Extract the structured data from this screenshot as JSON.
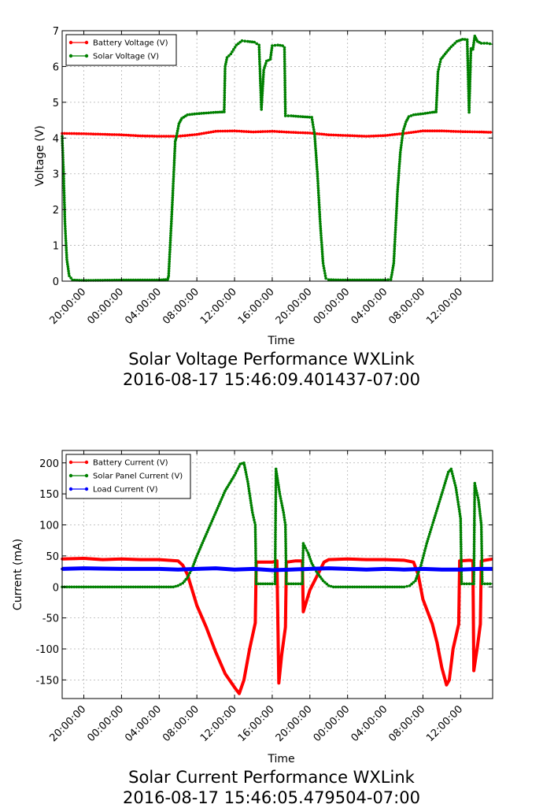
{
  "chart_data": [
    {
      "type": "line",
      "title": "Solar Voltage Performance WXLink",
      "subtitle": "2016-08-17 15:46:09.401437-07:00",
      "xlabel": "Time",
      "ylabel": "Voltage (V)",
      "ylim": [
        0,
        7
      ],
      "yticks": [
        0,
        1,
        2,
        3,
        4,
        5,
        6,
        7
      ],
      "xticks_hours": [
        20,
        24,
        28,
        32,
        36,
        40,
        44,
        48,
        52,
        56,
        60
      ],
      "xtick_labels": [
        "20:00:00",
        "00:00:00",
        "04:00:00",
        "08:00:00",
        "12:00:00",
        "16:00:00",
        "20:00:00",
        "00:00:00",
        "04:00:00",
        "08:00:00",
        "12:00:00"
      ],
      "xlim_hours": [
        17.7,
        63.4
      ],
      "grid": true,
      "legend_position": "top-left",
      "colors": {
        "battery": "#ff0000",
        "solar": "#008000"
      },
      "series": [
        {
          "name": "Battery Voltage (V)",
          "color": "#ff0000",
          "points": [
            [
              17.7,
              4.13
            ],
            [
              20,
              4.12
            ],
            [
              24,
              4.09
            ],
            [
              26,
              4.06
            ],
            [
              28,
              4.05
            ],
            [
              30,
              4.05
            ],
            [
              32,
              4.1
            ],
            [
              34,
              4.19
            ],
            [
              36,
              4.2
            ],
            [
              38,
              4.17
            ],
            [
              40,
              4.19
            ],
            [
              42,
              4.16
            ],
            [
              44,
              4.14
            ],
            [
              46,
              4.09
            ],
            [
              48,
              4.07
            ],
            [
              50,
              4.05
            ],
            [
              52,
              4.07
            ],
            [
              54,
              4.13
            ],
            [
              56,
              4.2
            ],
            [
              58,
              4.2
            ],
            [
              60,
              4.18
            ],
            [
              62,
              4.17
            ],
            [
              63.4,
              4.16
            ]
          ]
        },
        {
          "name": "Solar Voltage (V)",
          "color": "#008000",
          "points": [
            [
              17.7,
              4.05
            ],
            [
              17.85,
              3.0
            ],
            [
              18.0,
              1.6
            ],
            [
              18.2,
              0.6
            ],
            [
              18.45,
              0.15
            ],
            [
              18.8,
              0.03
            ],
            [
              20,
              0.02
            ],
            [
              24,
              0.03
            ],
            [
              28,
              0.03
            ],
            [
              28.9,
              0.05
            ],
            [
              29.0,
              0.15
            ],
            [
              29.4,
              2.2
            ],
            [
              29.7,
              3.9
            ],
            [
              29.8,
              4.0
            ],
            [
              30.1,
              4.4
            ],
            [
              30.4,
              4.55
            ],
            [
              31,
              4.65
            ],
            [
              32,
              4.68
            ],
            [
              33,
              4.7
            ],
            [
              34,
              4.72
            ],
            [
              34.9,
              4.73
            ],
            [
              35.0,
              6.0
            ],
            [
              35.2,
              6.25
            ],
            [
              35.6,
              6.35
            ],
            [
              36.2,
              6.6
            ],
            [
              36.8,
              6.72
            ],
            [
              37.4,
              6.7
            ],
            [
              38.1,
              6.68
            ],
            [
              38.6,
              6.6
            ],
            [
              38.85,
              4.8
            ],
            [
              39.1,
              5.9
            ],
            [
              39.4,
              6.15
            ],
            [
              39.8,
              6.2
            ],
            [
              40.0,
              6.58
            ],
            [
              40.6,
              6.6
            ],
            [
              41.1,
              6.58
            ],
            [
              41.3,
              6.53
            ],
            [
              41.4,
              4.62
            ],
            [
              42,
              4.62
            ],
            [
              43,
              4.6
            ],
            [
              44.2,
              4.58
            ],
            [
              44.5,
              4.1
            ],
            [
              44.8,
              3.0
            ],
            [
              45.1,
              1.6
            ],
            [
              45.4,
              0.5
            ],
            [
              45.7,
              0.08
            ],
            [
              46,
              0.04
            ],
            [
              48,
              0.03
            ],
            [
              52,
              0.03
            ],
            [
              52.6,
              0.05
            ],
            [
              52.9,
              0.5
            ],
            [
              53.3,
              2.5
            ],
            [
              53.6,
              3.6
            ],
            [
              53.9,
              4.2
            ],
            [
              54.2,
              4.45
            ],
            [
              54.5,
              4.6
            ],
            [
              55,
              4.65
            ],
            [
              56,
              4.68
            ],
            [
              57,
              4.72
            ],
            [
              57.4,
              4.73
            ],
            [
              57.6,
              5.85
            ],
            [
              57.9,
              6.2
            ],
            [
              58.5,
              6.4
            ],
            [
              59,
              6.55
            ],
            [
              59.6,
              6.7
            ],
            [
              60.2,
              6.76
            ],
            [
              60.7,
              6.75
            ],
            [
              60.9,
              4.72
            ],
            [
              61.1,
              6.5
            ],
            [
              61.3,
              6.48
            ],
            [
              61.5,
              6.85
            ],
            [
              61.8,
              6.7
            ],
            [
              62.2,
              6.65
            ],
            [
              62.8,
              6.65
            ],
            [
              63.4,
              6.62
            ]
          ]
        }
      ]
    },
    {
      "type": "line",
      "title": "Solar Current Performance WXLink",
      "subtitle": "2016-08-17 15:46:05.479504-07:00",
      "xlabel": "Time",
      "ylabel": "Current (mA)",
      "ylim": [
        -180,
        220
      ],
      "yticks": [
        -150,
        -100,
        -50,
        0,
        50,
        100,
        150,
        200
      ],
      "xticks_hours": [
        20,
        24,
        28,
        32,
        36,
        40,
        44,
        48,
        52,
        56,
        60
      ],
      "xtick_labels": [
        "20:00:00",
        "00:00:00",
        "04:00:00",
        "08:00:00",
        "12:00:00",
        "16:00:00",
        "20:00:00",
        "00:00:00",
        "04:00:00",
        "08:00:00",
        "12:00:00"
      ],
      "xlim_hours": [
        17.7,
        63.4
      ],
      "grid": true,
      "legend_position": "top-left",
      "colors": {
        "battery": "#ff0000",
        "solar": "#008000",
        "load": "#0000ff"
      },
      "series": [
        {
          "name": "Battery Current (V)",
          "color": "#ff0000",
          "points": [
            [
              17.7,
              45
            ],
            [
              20,
              46
            ],
            [
              22,
              44
            ],
            [
              24,
              45
            ],
            [
              26,
              44
            ],
            [
              28,
              44
            ],
            [
              30,
              42
            ],
            [
              30.5,
              35
            ],
            [
              31,
              20
            ],
            [
              31.5,
              -5
            ],
            [
              32,
              -30
            ],
            [
              33,
              -65
            ],
            [
              34,
              -105
            ],
            [
              35,
              -140
            ],
            [
              36,
              -162
            ],
            [
              36.5,
              -172
            ],
            [
              37,
              -150
            ],
            [
              37.6,
              -100
            ],
            [
              38.2,
              -58
            ],
            [
              38.3,
              40
            ],
            [
              40,
              40
            ],
            [
              40.5,
              42
            ],
            [
              40.7,
              -155
            ],
            [
              41,
              -110
            ],
            [
              41.4,
              -65
            ],
            [
              41.5,
              40
            ],
            [
              42.5,
              42
            ],
            [
              43.2,
              42
            ],
            [
              43.3,
              -40
            ],
            [
              43.7,
              -20
            ],
            [
              44,
              -5
            ],
            [
              44.5,
              10
            ],
            [
              45,
              25
            ],
            [
              45.5,
              40
            ],
            [
              46,
              44
            ],
            [
              48,
              45
            ],
            [
              50,
              44
            ],
            [
              52,
              44
            ],
            [
              54,
              43
            ],
            [
              55,
              40
            ],
            [
              55.5,
              20
            ],
            [
              56,
              -20
            ],
            [
              56.5,
              -40
            ],
            [
              57,
              -60
            ],
            [
              57.5,
              -90
            ],
            [
              58,
              -130
            ],
            [
              58.5,
              -158
            ],
            [
              58.8,
              -150
            ],
            [
              59.2,
              -100
            ],
            [
              59.8,
              -60
            ],
            [
              59.9,
              42
            ],
            [
              61,
              43
            ],
            [
              61.3,
              42
            ],
            [
              61.4,
              -135
            ],
            [
              61.8,
              -95
            ],
            [
              62.1,
              -60
            ],
            [
              62.2,
              42
            ],
            [
              63.4,
              45
            ]
          ]
        },
        {
          "name": "Solar Panel Current (V)",
          "color": "#008000",
          "points": [
            [
              17.7,
              0
            ],
            [
              20,
              0
            ],
            [
              24,
              0
            ],
            [
              28,
              0
            ],
            [
              29.5,
              0
            ],
            [
              30,
              2
            ],
            [
              30.5,
              6
            ],
            [
              31,
              15
            ],
            [
              31.5,
              30
            ],
            [
              32,
              50
            ],
            [
              33,
              85
            ],
            [
              34,
              120
            ],
            [
              35,
              155
            ],
            [
              36,
              180
            ],
            [
              36.6,
              198
            ],
            [
              37,
              200
            ],
            [
              37.4,
              170
            ],
            [
              37.9,
              120
            ],
            [
              38.2,
              100
            ],
            [
              38.3,
              5
            ],
            [
              40,
              5
            ],
            [
              40.3,
              5
            ],
            [
              40.4,
              190
            ],
            [
              40.8,
              150
            ],
            [
              41.2,
              120
            ],
            [
              41.4,
              100
            ],
            [
              41.5,
              5
            ],
            [
              43,
              5
            ],
            [
              43.2,
              5
            ],
            [
              43.3,
              70
            ],
            [
              43.8,
              55
            ],
            [
              44.2,
              38
            ],
            [
              44.8,
              22
            ],
            [
              45.4,
              10
            ],
            [
              46,
              2
            ],
            [
              46.5,
              0
            ],
            [
              48,
              0
            ],
            [
              52,
              0
            ],
            [
              54,
              0
            ],
            [
              54.6,
              2
            ],
            [
              55.2,
              10
            ],
            [
              55.8,
              35
            ],
            [
              56.4,
              70
            ],
            [
              57,
              100
            ],
            [
              57.6,
              130
            ],
            [
              58.2,
              160
            ],
            [
              58.7,
              185
            ],
            [
              59,
              190
            ],
            [
              59.5,
              160
            ],
            [
              60,
              110
            ],
            [
              60.1,
              5
            ],
            [
              61.2,
              5
            ],
            [
              61.4,
              5
            ],
            [
              61.5,
              167
            ],
            [
              61.9,
              140
            ],
            [
              62.2,
              100
            ],
            [
              62.3,
              5
            ],
            [
              63.4,
              5
            ]
          ]
        },
        {
          "name": "Load Current (V)",
          "color": "#0000ff",
          "points": [
            [
              17.7,
              29
            ],
            [
              20,
              30
            ],
            [
              24,
              29
            ],
            [
              28,
              29
            ],
            [
              30,
              28
            ],
            [
              32,
              29
            ],
            [
              34,
              30
            ],
            [
              36,
              28
            ],
            [
              38,
              29
            ],
            [
              40,
              27
            ],
            [
              42,
              28
            ],
            [
              44,
              29
            ],
            [
              46,
              30
            ],
            [
              48,
              29
            ],
            [
              50,
              28
            ],
            [
              52,
              29
            ],
            [
              54,
              28
            ],
            [
              56,
              29
            ],
            [
              58,
              28
            ],
            [
              60,
              28
            ],
            [
              62,
              29
            ],
            [
              63.4,
              29
            ]
          ]
        }
      ]
    }
  ]
}
